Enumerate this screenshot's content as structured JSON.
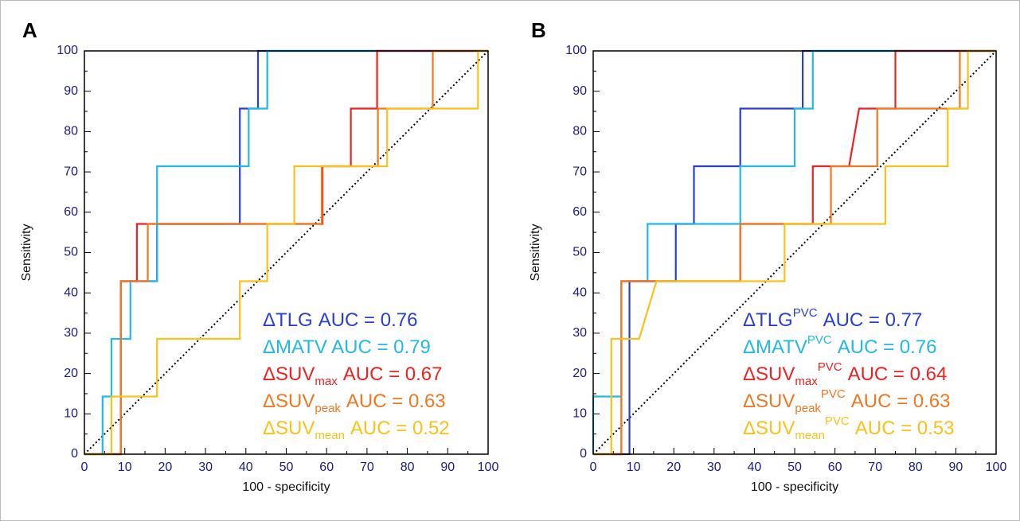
{
  "chart_data": [
    {
      "type": "line",
      "label": "A",
      "xlabel": "100 - specificity",
      "ylabel": "Sensitivity",
      "xlim": [
        0,
        100
      ],
      "ylim": [
        0,
        100
      ],
      "xticks": [
        0,
        10,
        20,
        30,
        40,
        50,
        60,
        70,
        80,
        90,
        100
      ],
      "yticks": [
        0,
        10,
        20,
        30,
        40,
        50,
        60,
        70,
        80,
        90,
        100
      ],
      "series": [
        {
          "name": "ΔTLG",
          "auc_text": "AUC = 0.76",
          "color": "#2a3fd0",
          "x": [
            0,
            9,
            9,
            18,
            18,
            38.5,
            38.5,
            43,
            43,
            100
          ],
          "values": [
            0,
            0,
            42.9,
            42.9,
            57.1,
            57.1,
            85.7,
            85.7,
            100,
            100
          ]
        },
        {
          "name": "ΔMATV",
          "auc_text": "AUC = 0.79",
          "color": "#22b8e8",
          "x": [
            0,
            4.5,
            4.5,
            6.7,
            6.7,
            11.4,
            11.4,
            18,
            18,
            40.7,
            40.7,
            45.3,
            45.3,
            100
          ],
          "values": [
            0,
            0,
            14.3,
            14.3,
            28.6,
            28.6,
            42.9,
            42.9,
            71.4,
            71.4,
            85.7,
            85.7,
            100,
            100
          ]
        },
        {
          "name": "ΔSUV",
          "name_sub": "max",
          "auc_text": "AUC = 0.67",
          "color": "#ee2222",
          "x": [
            0,
            9,
            9,
            13,
            13,
            59,
            59,
            66,
            66,
            72.5,
            72.5,
            100
          ],
          "values": [
            0,
            0,
            42.9,
            42.9,
            57.1,
            57.1,
            71.4,
            71.4,
            85.7,
            85.7,
            100,
            100
          ]
        },
        {
          "name": "ΔSUV",
          "name_sub": "peak",
          "auc_text": "AUC = 0.63",
          "color": "#f07820",
          "x": [
            0,
            9,
            9,
            15.7,
            15.7,
            58.8,
            58.8,
            72.7,
            72.7,
            86.3,
            86.3,
            100
          ],
          "values": [
            0,
            0,
            42.9,
            42.9,
            57.1,
            57.1,
            71.4,
            71.4,
            85.7,
            85.7,
            100,
            100
          ]
        },
        {
          "name": "ΔSUV",
          "name_sub": "mean",
          "auc_text": "AUC = 0.52",
          "color": "#f8c21a",
          "x": [
            0,
            6.7,
            6.7,
            18,
            18,
            38.5,
            38.5,
            45.3,
            45.3,
            52,
            52,
            75,
            75,
            97.5,
            97.5,
            100
          ],
          "values": [
            0,
            0,
            14.3,
            14.3,
            28.6,
            28.6,
            42.9,
            42.9,
            57.1,
            57.1,
            71.4,
            71.4,
            85.7,
            85.7,
            100,
            100
          ]
        }
      ]
    },
    {
      "type": "line",
      "label": "B",
      "xlabel": "100 - specificity",
      "ylabel": "Sensitivity",
      "xlim": [
        0,
        100
      ],
      "ylim": [
        0,
        100
      ],
      "xticks": [
        0,
        10,
        20,
        30,
        40,
        50,
        60,
        70,
        80,
        90,
        100
      ],
      "yticks": [
        0,
        10,
        20,
        30,
        40,
        50,
        60,
        70,
        80,
        90,
        100
      ],
      "series": [
        {
          "name": "ΔTLG",
          "name_sup": "PVC",
          "auc_text": "AUC = 0.77",
          "color": "#2a3fd0",
          "x": [
            0,
            9,
            9,
            20.5,
            20.5,
            25,
            25,
            36.5,
            36.5,
            52,
            52,
            100
          ],
          "values": [
            0,
            0,
            42.9,
            42.9,
            57.1,
            57.1,
            71.4,
            71.4,
            85.7,
            85.7,
            100,
            100
          ]
        },
        {
          "name": "ΔMATV",
          "name_sup": "PVC",
          "auc_text": "AUC = 0.76",
          "color": "#22b8e8",
          "x": [
            0,
            0,
            7,
            7,
            13.5,
            13.5,
            36.5,
            36.5,
            50,
            50,
            54.5,
            54.5,
            100
          ],
          "values": [
            0,
            14.3,
            14.3,
            42.9,
            42.9,
            57.1,
            57.1,
            71.4,
            71.4,
            85.7,
            85.7,
            100,
            100
          ]
        },
        {
          "name": "ΔSUV",
          "name_sub": "max",
          "name_sup": "PVC",
          "auc_text": "AUC = 0.64",
          "color": "#ee2222",
          "x": [
            0,
            7,
            7,
            36.5,
            36.5,
            54.5,
            54.5,
            63.5,
            66,
            75,
            75,
            100
          ],
          "values": [
            0,
            0,
            42.9,
            42.9,
            57.1,
            57.1,
            71.4,
            71.4,
            85.7,
            85.7,
            100,
            100
          ]
        },
        {
          "name": "ΔSUV",
          "name_sub": "peak",
          "name_sup": "PVC",
          "auc_text": "AUC = 0.63",
          "color": "#f07820",
          "x": [
            0,
            7,
            7,
            36.5,
            36.5,
            59,
            59,
            70.5,
            70.5,
            91,
            91,
            100
          ],
          "values": [
            0,
            0,
            42.9,
            42.9,
            57.1,
            57.1,
            71.4,
            71.4,
            85.7,
            85.7,
            100,
            100
          ]
        },
        {
          "name": "ΔSUV",
          "name_sub": "mean",
          "name_sup": "PVC",
          "auc_text": "AUC = 0.53",
          "color": "#f8c21a",
          "x": [
            0,
            4.5,
            4.5,
            11.4,
            15.7,
            47.5,
            47.5,
            72.5,
            72.5,
            88,
            88,
            93,
            93,
            100
          ],
          "values": [
            0,
            0,
            28.6,
            28.6,
            42.9,
            42.9,
            57.1,
            57.1,
            71.4,
            71.4,
            85.7,
            85.7,
            100,
            100
          ]
        }
      ]
    }
  ]
}
